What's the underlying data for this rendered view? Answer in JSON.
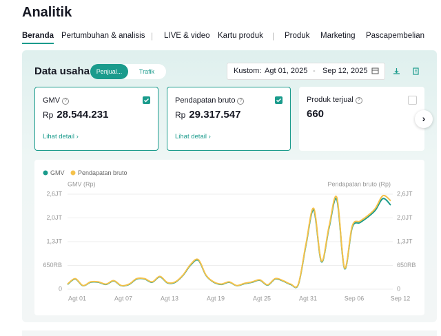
{
  "header": {
    "title": "Analitik"
  },
  "tabs": [
    "Beranda",
    "Pertumbuhan & analisis",
    "LIVE & video",
    "Kartu produk",
    "Produk",
    "Marketing",
    "Pascapembelian"
  ],
  "section": {
    "title": "Data usaha",
    "toggle": [
      "Penjual...",
      "Trafik"
    ],
    "date_label": "Kustom:",
    "date_start": "Agt 01, 2025",
    "date_end": "Sep 12, 2025"
  },
  "cards": [
    {
      "label": "GMV",
      "currency": "Rp",
      "value": "28.544.231",
      "link": "Lihat detail",
      "checked": true
    },
    {
      "label": "Pendapatan bruto",
      "currency": "Rp",
      "value": "29.317.547",
      "link": "Lihat detail",
      "checked": true
    },
    {
      "label": "Produk terjual",
      "value": "660",
      "checked": false
    }
  ],
  "chart": {
    "type": "line",
    "y_axis_label": "GMV (Rp)",
    "y2_axis_label": "Pendapatan bruto (Rp)",
    "x": [
      "Agt 01",
      null,
      null,
      null,
      null,
      null,
      "Agt 07",
      null,
      null,
      null,
      null,
      null,
      "Agt 13",
      null,
      null,
      null,
      null,
      null,
      "Agt 19",
      null,
      null,
      null,
      null,
      null,
      "Agt 25",
      null,
      null,
      null,
      null,
      null,
      "Agt 31",
      null,
      null,
      null,
      null,
      null,
      "Sep 06",
      null,
      null,
      null,
      null,
      null,
      "Sep 12"
    ],
    "series": [
      {
        "name": "GMV",
        "color": "#1a9b8c",
        "values": [
          130000,
          280000,
          95000,
          190000,
          190000,
          130000,
          225000,
          95000,
          130000,
          280000,
          280000,
          190000,
          340000,
          170000,
          190000,
          375000,
          660000,
          790000,
          375000,
          190000,
          130000,
          190000,
          95000,
          150000,
          190000,
          245000,
          110000,
          280000,
          225000,
          130000,
          130000,
          1220000,
          2160000,
          750000,
          1690000,
          2450000,
          565000,
          1690000,
          1820000,
          1970000,
          2160000,
          2480000,
          2300000
        ]
      },
      {
        "name": "Pendapatan bruto",
        "color": "#f5c24c",
        "values": [
          140000,
          290000,
          100000,
          200000,
          200000,
          140000,
          235000,
          100000,
          140000,
          290000,
          290000,
          200000,
          350000,
          180000,
          200000,
          385000,
          680000,
          810000,
          385000,
          200000,
          140000,
          200000,
          100000,
          160000,
          200000,
          255000,
          120000,
          290000,
          235000,
          140000,
          140000,
          1250000,
          2210000,
          770000,
          1730000,
          2510000,
          580000,
          1730000,
          1860000,
          2010000,
          2210000,
          2560000,
          2420000
        ]
      }
    ],
    "ylim": [
      0,
      2600000
    ],
    "yticks": [
      0,
      {
        "value": 650000,
        "label": "650RB"
      },
      {
        "value": 1300000,
        "label": "1,3JT"
      },
      {
        "value": 1950000,
        "label": "2,0JT"
      },
      {
        "value": 2600000,
        "label": "2,6JT"
      }
    ],
    "y2lim": [
      0,
      2600000
    ],
    "y2ticks": [
      0,
      {
        "value": 650000,
        "label": "650RB"
      },
      {
        "value": 1300000,
        "label": "1,3JT"
      },
      {
        "value": 1950000,
        "label": "2,0JT"
      },
      {
        "value": 2600000,
        "label": "2,6JT"
      }
    ],
    "grid": true
  }
}
